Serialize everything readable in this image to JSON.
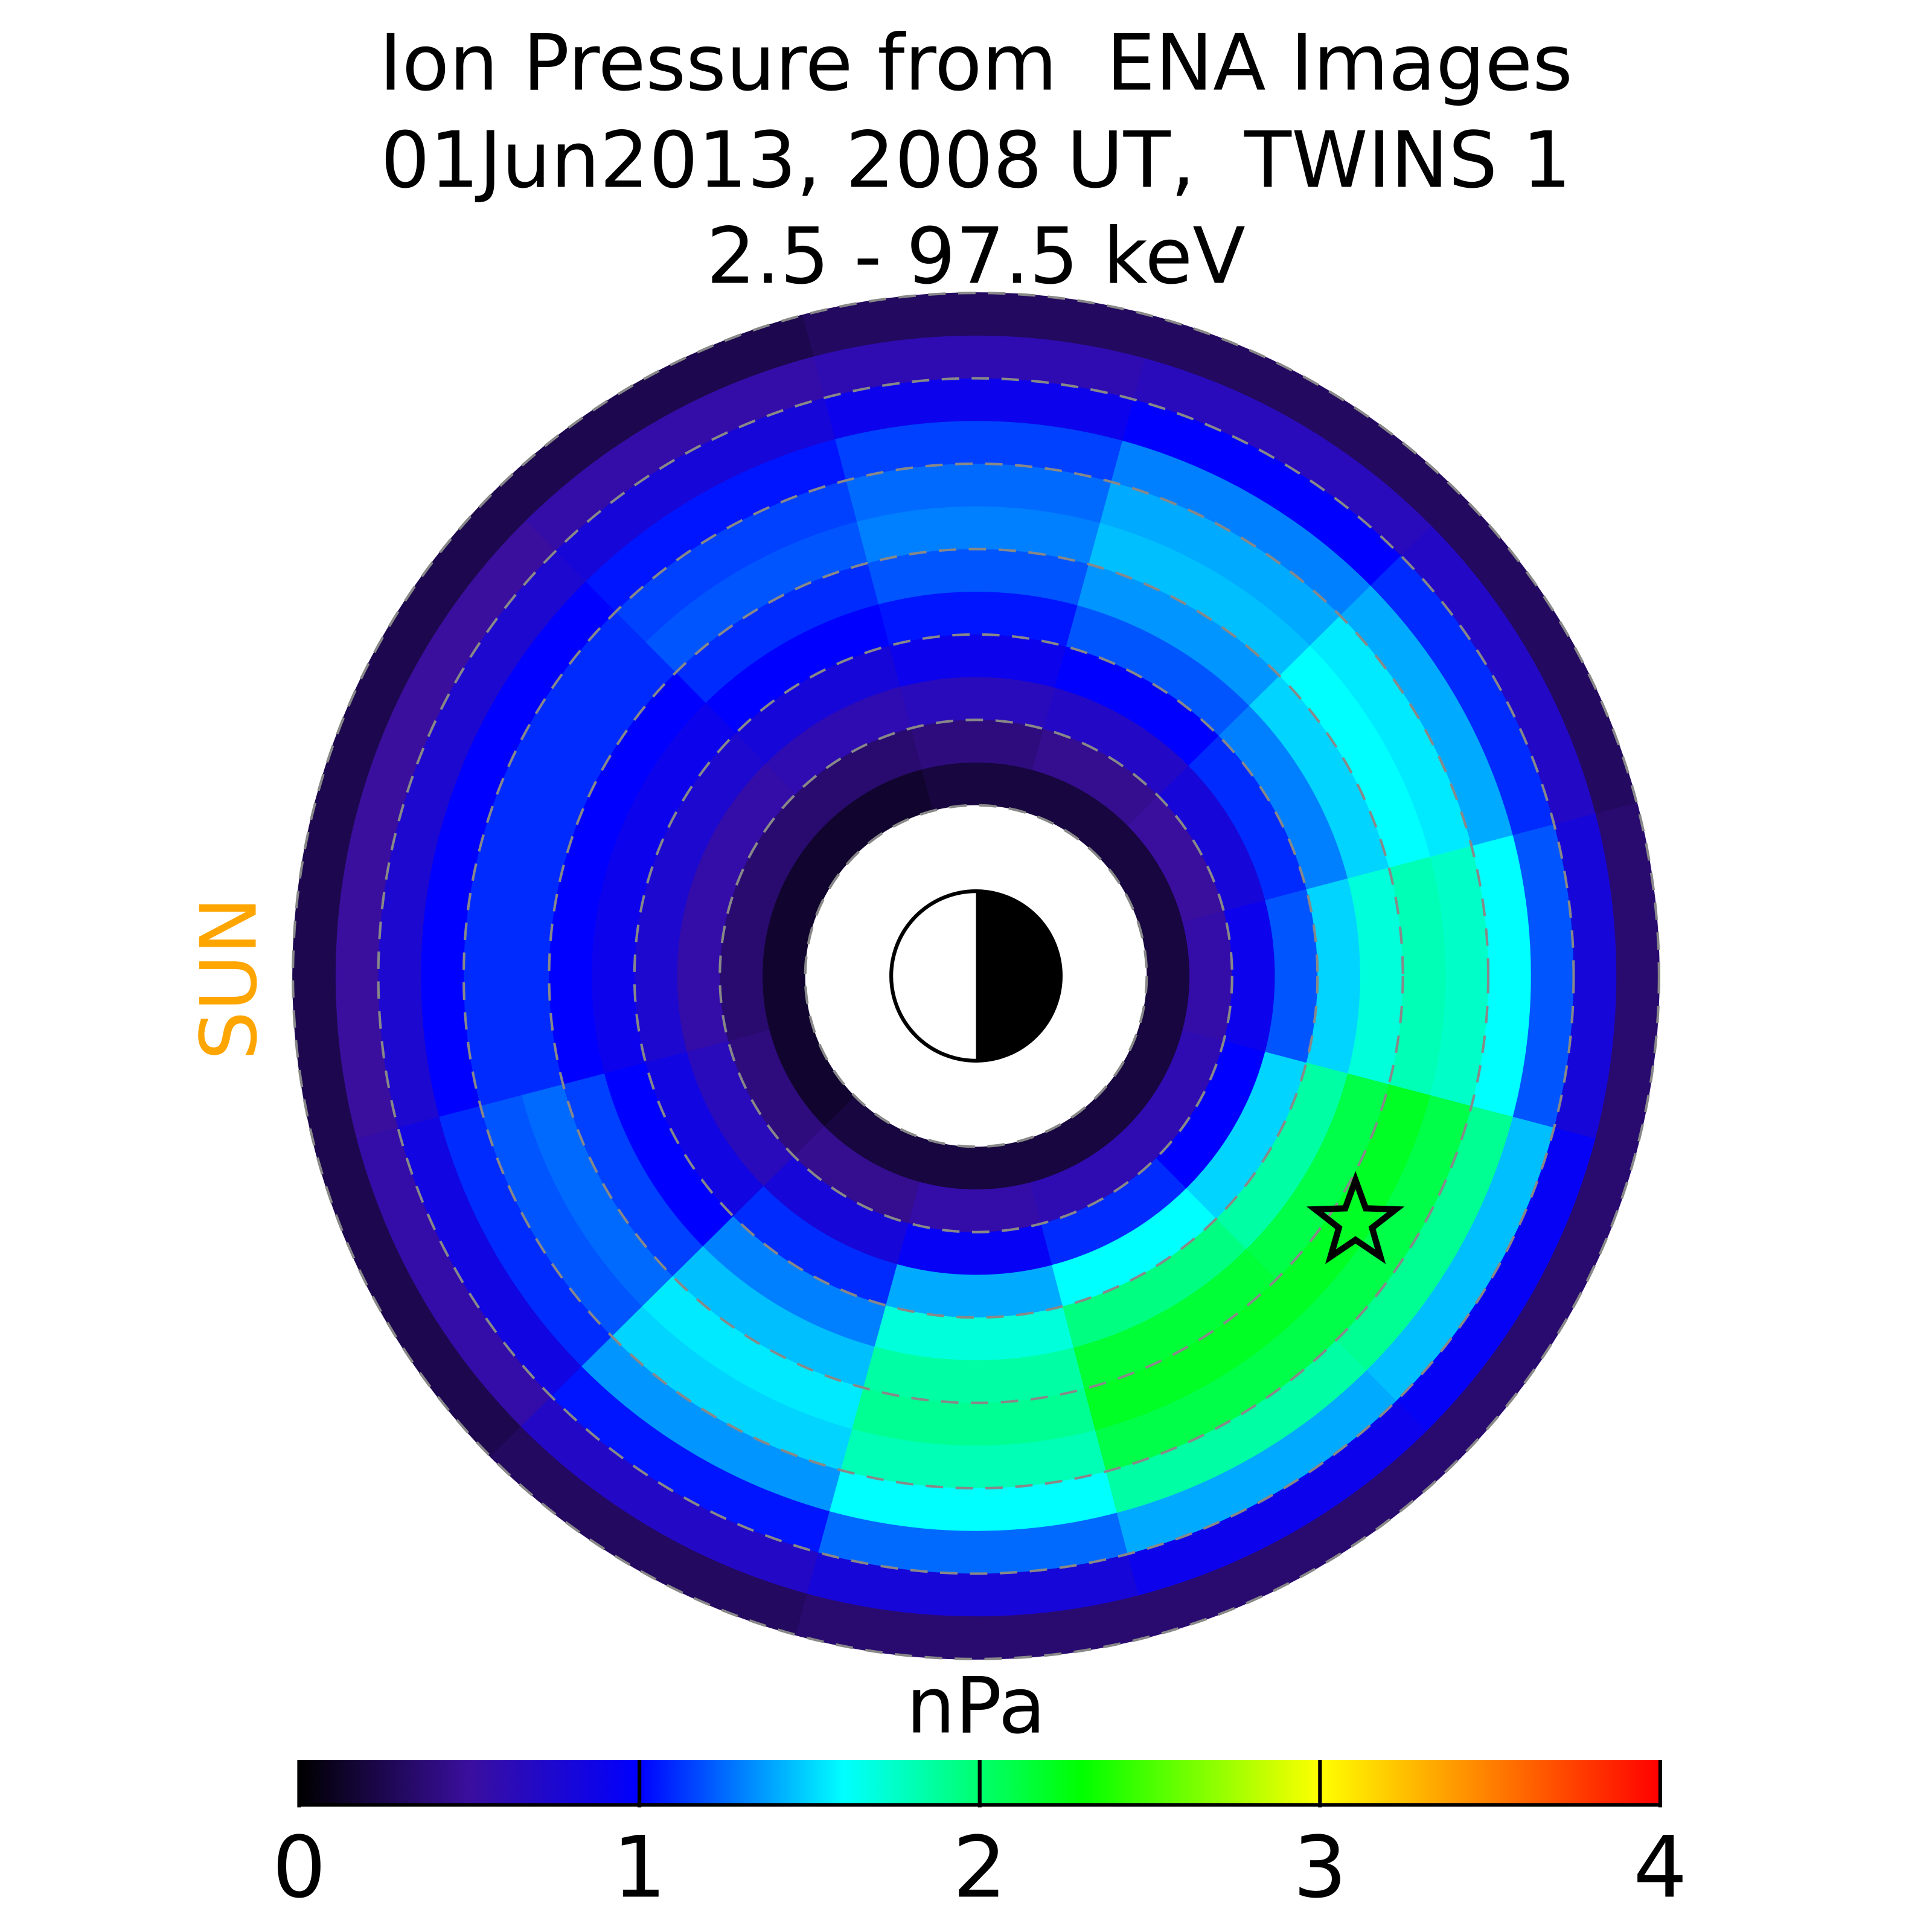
{
  "chart_data": {
    "type": "polar_heatmap",
    "title": [
      "Ion Pressure from  ENA Images",
      "01Jun2013, 2008 UT,  TWINS 1",
      "2.5 - 97.5 keV"
    ],
    "sun_label": "SUN",
    "colorbar_label": "nPa",
    "clim": [
      0,
      4
    ],
    "cticks": [
      0,
      1,
      2,
      3,
      4
    ],
    "colormap": [
      {
        "value": 0,
        "color": "#000000"
      },
      {
        "value": 0.5,
        "color": "#3a0f9e"
      },
      {
        "value": 1.0,
        "color": "#0000ff"
      },
      {
        "value": 1.6,
        "color": "#00ffff"
      },
      {
        "value": 2.3,
        "color": "#00ff00"
      },
      {
        "value": 3.0,
        "color": "#ffff00"
      },
      {
        "value": 4.0,
        "color": "#ff0000"
      }
    ],
    "rlim": [
      0,
      8
    ],
    "rgrid": [
      2,
      3,
      4,
      5,
      6,
      7,
      8
    ],
    "r_edges": [
      2,
      2.5,
      3,
      3.5,
      4,
      4.5,
      5,
      5.5,
      6,
      6.5,
      7,
      7.5,
      8
    ],
    "mlt_centers": [
      0,
      2,
      4,
      6,
      8,
      10,
      12,
      14,
      16,
      18,
      20,
      22
    ],
    "values": [
      [
        0.2,
        0.55,
        0.9,
        1.2,
        1.5,
        1.7,
        1.8,
        1.75,
        1.6,
        1.2,
        0.8,
        0.35
      ],
      [
        0.2,
        0.5,
        0.8,
        1.1,
        1.3,
        1.5,
        1.6,
        1.55,
        1.4,
        1.1,
        0.7,
        0.3
      ],
      [
        0.2,
        0.45,
        0.7,
        1.0,
        1.2,
        1.35,
        1.45,
        1.4,
        1.3,
        1.0,
        0.65,
        0.3
      ],
      [
        0.2,
        0.4,
        0.65,
        0.9,
        1.05,
        1.2,
        1.3,
        1.25,
        1.15,
        0.9,
        0.6,
        0.3
      ],
      [
        0.15,
        0.35,
        0.6,
        0.8,
        1.0,
        1.1,
        1.2,
        1.15,
        1.05,
        0.8,
        0.55,
        0.25
      ],
      [
        0.15,
        0.35,
        0.55,
        0.75,
        0.9,
        1.0,
        1.1,
        1.1,
        1.0,
        0.75,
        0.5,
        0.25
      ],
      [
        0.15,
        0.35,
        0.55,
        0.75,
        0.9,
        1.0,
        1.1,
        1.1,
        1.0,
        0.75,
        0.5,
        0.25
      ],
      [
        0.15,
        0.4,
        0.65,
        0.85,
        1.0,
        1.15,
        1.25,
        1.2,
        1.1,
        0.85,
        0.55,
        0.25
      ],
      [
        0.2,
        0.45,
        0.8,
        1.1,
        1.3,
        1.45,
        1.55,
        1.5,
        1.35,
        1.05,
        0.7,
        0.3
      ],
      [
        0.2,
        0.55,
        0.95,
        1.4,
        1.7,
        1.85,
        1.9,
        1.8,
        1.6,
        1.25,
        0.8,
        0.35
      ],
      [
        0.2,
        0.6,
        1.1,
        1.6,
        1.95,
        2.15,
        2.2,
        2.1,
        1.85,
        1.4,
        0.9,
        0.35
      ],
      [
        0.2,
        0.6,
        1.0,
        1.5,
        1.85,
        2.1,
        2.2,
        2.1,
        1.9,
        1.45,
        0.95,
        0.35
      ]
    ],
    "marker": {
      "L": 5.3,
      "mlt": 21.8
    }
  }
}
